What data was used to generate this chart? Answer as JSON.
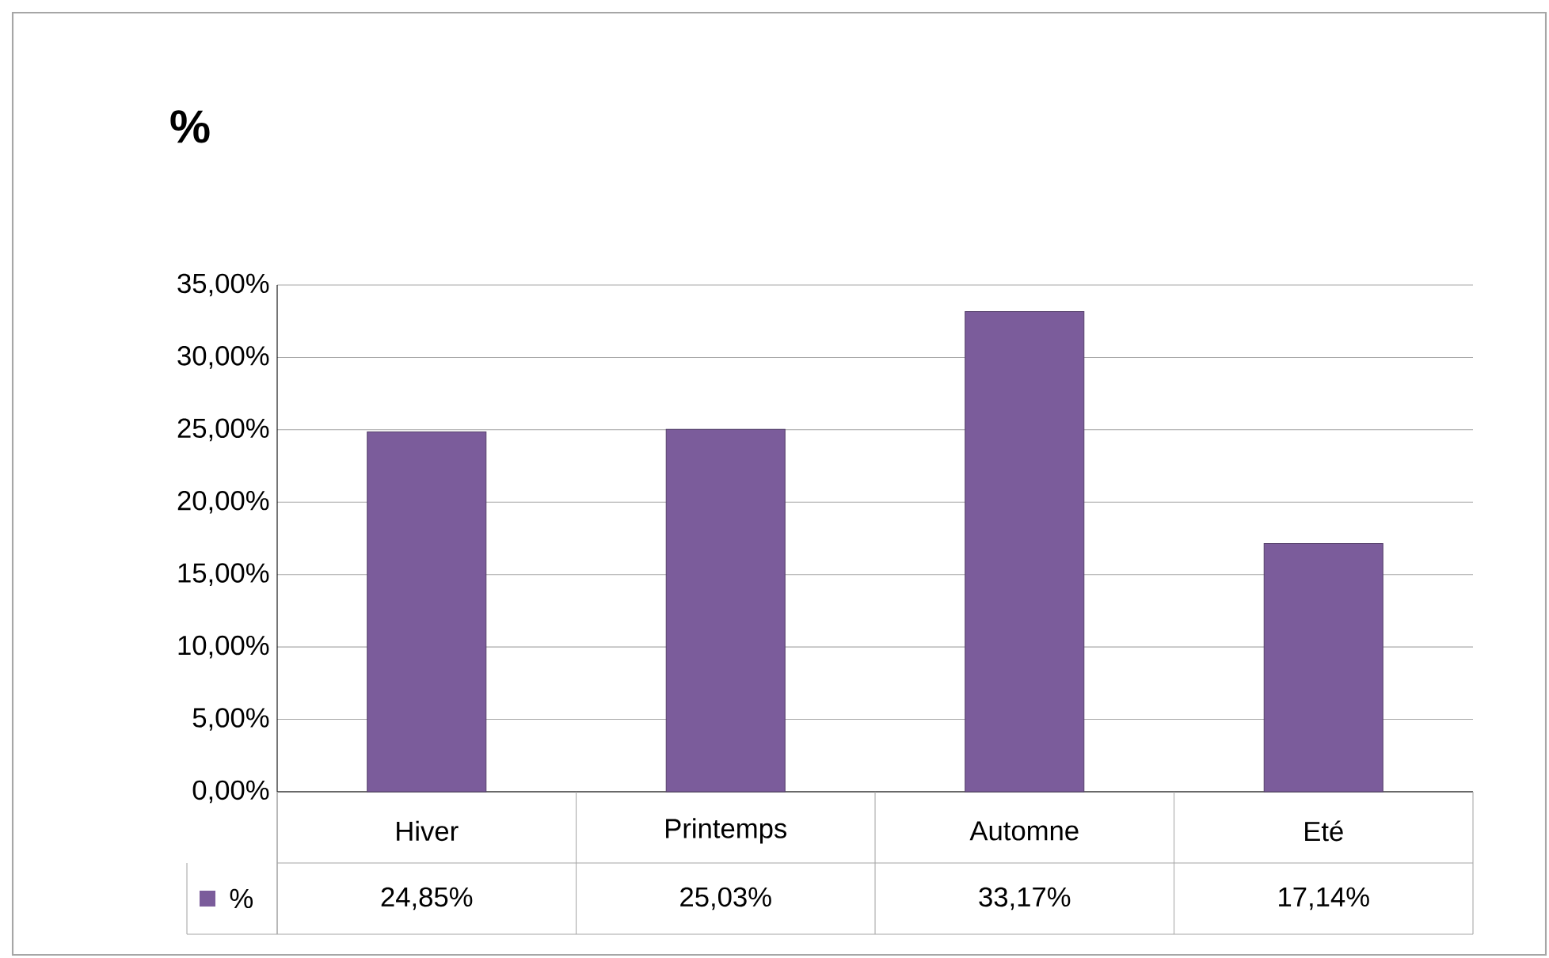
{
  "chart_data": {
    "type": "bar",
    "title": "%",
    "categories": [
      "Hiver",
      "Printemps",
      "Automne",
      "Eté"
    ],
    "series": [
      {
        "name": "%",
        "color": "#7b5c9b",
        "values": [
          24.85,
          25.03,
          33.17,
          17.14
        ],
        "value_labels": [
          "24,85%",
          "25,03%",
          "33,17%",
          "17,14%"
        ]
      }
    ],
    "ylim": [
      0,
      35
    ],
    "yticks": [
      {
        "value": 0,
        "label": "0,00%"
      },
      {
        "value": 5,
        "label": "5,00%"
      },
      {
        "value": 10,
        "label": "10,00%"
      },
      {
        "value": 15,
        "label": "15,00%"
      },
      {
        "value": 20,
        "label": "20,00%"
      },
      {
        "value": 25,
        "label": "25,00%"
      },
      {
        "value": 30,
        "label": "30,00%"
      },
      {
        "value": 35,
        "label": "35,00%"
      }
    ],
    "grid": "y",
    "legend": "bottom"
  }
}
